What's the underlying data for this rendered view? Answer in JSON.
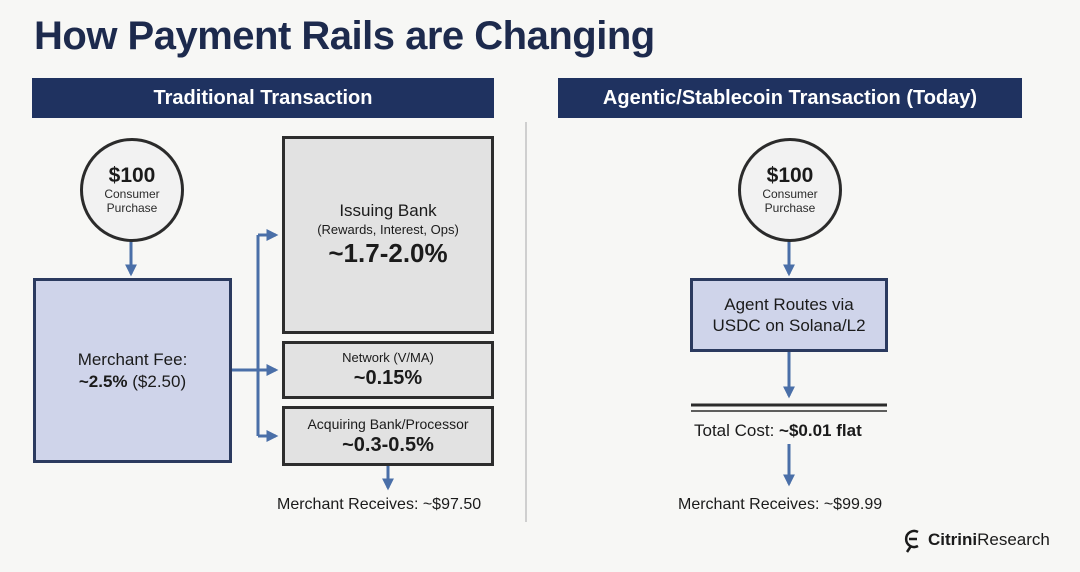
{
  "title": "How Payment Rails are Changing",
  "traditional": {
    "header": "Traditional Transaction",
    "amount": "$100",
    "purchase_line1": "Consumer",
    "purchase_line2": "Purchase",
    "merchant_fee_label": "Merchant Fee:",
    "merchant_fee_pct": "~2.5%",
    "merchant_fee_amt": "($2.50)",
    "issuing_title": "Issuing Bank",
    "issuing_sub": "(Rewards, Interest, Ops)",
    "issuing_value": "~1.7-2.0%",
    "network_title": "Network (V/MA)",
    "network_value": "~0.15%",
    "acquiring_title": "Acquiring Bank/Processor",
    "acquiring_value": "~0.3-0.5%",
    "receives": "Merchant Receives: ~$97.50"
  },
  "agentic": {
    "header": "Agentic/Stablecoin Transaction (Today)",
    "amount": "$100",
    "purchase_line1": "Consumer",
    "purchase_line2": "Purchase",
    "route_line1": "Agent Routes via",
    "route_line2": "USDC on Solana/L2",
    "cost_label": "Total Cost:",
    "cost_value": "~$0.01 flat",
    "receives": "Merchant Receives: ~$99.99"
  },
  "logo": {
    "icon": "citrini-logo-icon",
    "bold": "Citrini",
    "rest": "Research"
  },
  "colors": {
    "header": "#1f3260",
    "blue_box": "#cfd4ea",
    "grey_box": "#e2e2e2",
    "arrow": "#4a6fa8"
  }
}
